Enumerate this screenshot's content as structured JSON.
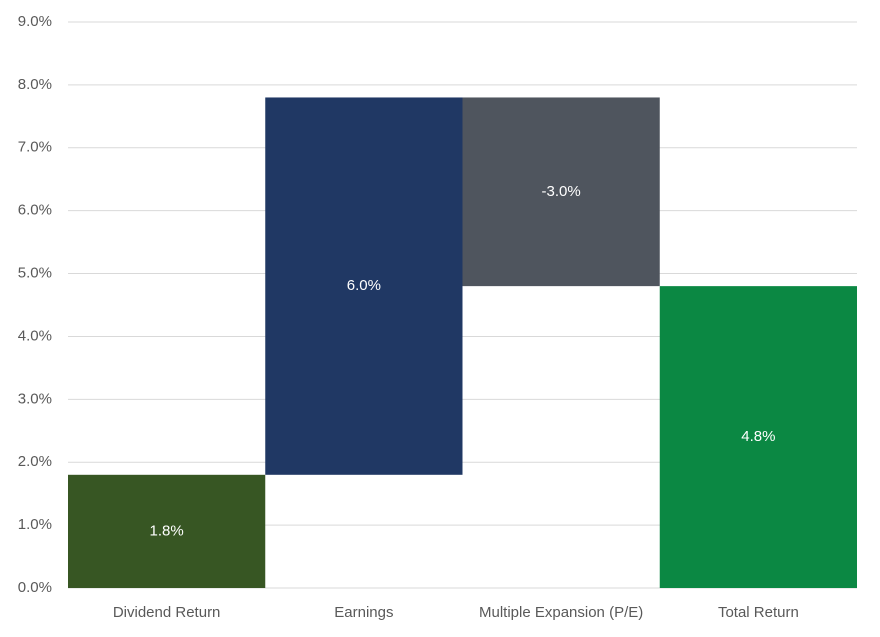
{
  "chart_data": {
    "type": "waterfall",
    "categories": [
      "Dividend Return",
      "Earnings",
      "Multiple Expansion (P/E)",
      "Total Return"
    ],
    "values": [
      1.8,
      6.0,
      -3.0,
      4.8
    ],
    "value_labels": [
      "1.8%",
      "6.0%",
      "-3.0%",
      "4.8%"
    ],
    "measures": [
      "relative",
      "relative",
      "relative",
      "total"
    ],
    "colors": [
      "#375623",
      "#203864",
      "#4f555e",
      "#0b8843"
    ],
    "ylim": [
      0,
      9
    ],
    "yticks": [
      {
        "value": 0,
        "label": "0.0%"
      },
      {
        "value": 1,
        "label": "1.0%"
      },
      {
        "value": 2,
        "label": "2.0%"
      },
      {
        "value": 3,
        "label": "3.0%"
      },
      {
        "value": 4,
        "label": "4.0%"
      },
      {
        "value": 5,
        "label": "5.0%"
      },
      {
        "value": 6,
        "label": "6.0%"
      },
      {
        "value": 7,
        "label": "7.0%"
      },
      {
        "value": 8,
        "label": "8.0%"
      },
      {
        "value": 9,
        "label": "9.0%"
      }
    ],
    "grid": true
  }
}
